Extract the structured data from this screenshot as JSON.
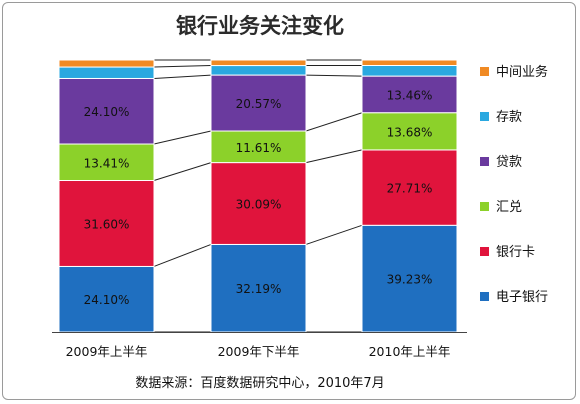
{
  "chart_data": {
    "type": "bar",
    "stacked": true,
    "normalized_percent": true,
    "title": "银行业务关注变化",
    "categories": [
      "2009年上半年",
      "2009年下半年",
      "2010年上半年"
    ],
    "series": [
      {
        "name": "电子银行",
        "values": [
          24.1,
          32.19,
          39.23
        ],
        "labels": [
          "24.10%",
          "32.19%",
          "39.23%"
        ],
        "color": "#1f6fc0"
      },
      {
        "name": "银行卡",
        "values": [
          31.6,
          30.09,
          27.71
        ],
        "labels": [
          "31.60%",
          "30.09%",
          "27.71%"
        ],
        "color": "#e0143c"
      },
      {
        "name": "汇兑",
        "values": [
          13.41,
          11.61,
          13.68
        ],
        "labels": [
          "13.41%",
          "11.61%",
          "13.68%"
        ],
        "color": "#8cd12a"
      },
      {
        "name": "贷款",
        "values": [
          24.1,
          20.57,
          13.46
        ],
        "labels": [
          "24.10%",
          "20.57%",
          "13.46%"
        ],
        "color": "#6a3a9e"
      },
      {
        "name": "存款",
        "values": [
          4.2,
          3.5,
          3.9
        ],
        "labels": [
          "",
          "",
          ""
        ],
        "color": "#2aa8e0"
      },
      {
        "name": "中间业务",
        "values": [
          2.59,
          2.04,
          2.02
        ],
        "labels": [
          "",
          "",
          ""
        ],
        "color": "#f08a24"
      }
    ],
    "legend_order": [
      "中间业务",
      "存款",
      "贷款",
      "汇兑",
      "银行卡",
      "电子银行"
    ],
    "legend_position": "right",
    "ylim": [
      0,
      100
    ],
    "grid": false,
    "source_note": "数据来源：百度数据研究中心，2010年7月"
  }
}
